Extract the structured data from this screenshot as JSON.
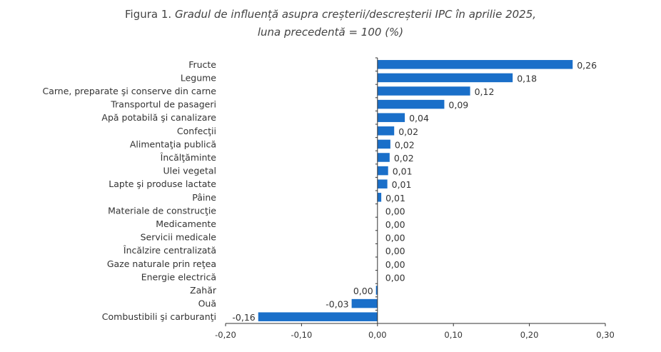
{
  "title": {
    "prefix": "Figura 1.",
    "line1": "Gradul de influență asupra creșterii/descreșterii IPC în aprilie 2025,",
    "line2": "luna precedentă = 100 (%)"
  },
  "colors": {
    "bar": "#1a6fc9",
    "axis": "#333333"
  },
  "chart_data": {
    "type": "bar",
    "orientation": "horizontal",
    "title": "Gradul de influență asupra creșterii/descreșterii IPC în aprilie 2025, luna precedentă = 100 (%)",
    "categories": [
      "Fructe",
      "Legume",
      "Carne, preparate şi conserve din carne",
      "Transportul de pasageri",
      "Apă potabilă şi canalizare",
      "Confecţii",
      "Alimentaţia publică",
      "Încălţăminte",
      "Ulei vegetal",
      "Lapte şi produse lactate",
      "Pâine",
      "Materiale de construcţie",
      "Medicamente",
      "Servicii medicale",
      "Încălzire centralizată",
      "Gaze naturale prin reţea",
      "Energie electrică",
      "Zahăr",
      "Ouă",
      "Combustibili şi carburanţi"
    ],
    "values": [
      0.26,
      0.18,
      0.12,
      0.09,
      0.04,
      0.02,
      0.02,
      0.02,
      0.01,
      0.01,
      0.01,
      0.0,
      0.0,
      0.0,
      0.0,
      0.0,
      0.0,
      0.0,
      -0.03,
      -0.16
    ],
    "bar_values": [
      0.257,
      0.178,
      0.122,
      0.088,
      0.036,
      0.022,
      0.017,
      0.016,
      0.014,
      0.013,
      0.005,
      0.0,
      0.0,
      0.0,
      0.0,
      0.0,
      0.0,
      -0.002,
      -0.034,
      -0.157
    ],
    "value_labels": [
      "0,26",
      "0,18",
      "0,12",
      "0,09",
      "0,04",
      "0,02",
      "0,02",
      "0,02",
      "0,01",
      "0,01",
      "0,01",
      "0,00",
      "0,00",
      "0,00",
      "0,00",
      "0,00",
      "0,00",
      "0,00",
      "-0,03",
      "-0,16"
    ],
    "xlim": [
      -0.2,
      0.3
    ],
    "xticks": [
      -0.2,
      -0.1,
      0.0,
      0.1,
      0.2,
      0.3
    ],
    "xtick_labels": [
      "-0,20",
      "-0,10",
      "0,00",
      "0,10",
      "0,20",
      "0,30"
    ],
    "grid": false,
    "legend": "none"
  }
}
